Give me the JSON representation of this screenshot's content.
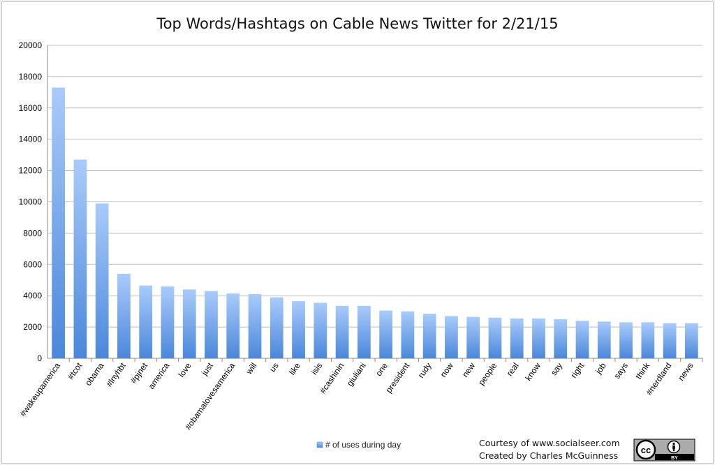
{
  "chart_data": {
    "type": "bar",
    "title": "Top Words/Hashtags on Cable News Twitter for 2/21/15",
    "xlabel": "",
    "ylabel": "",
    "ylim": [
      0,
      20000
    ],
    "yticks": [
      "0",
      "2000",
      "4000",
      "6000",
      "8000",
      "10000",
      "12000",
      "14000",
      "16000",
      "18000",
      "20000"
    ],
    "grid": true,
    "legend_position": "bottom",
    "categories": [
      "#wakeupamerica",
      "#tcot",
      "obama",
      "#lnyhbt",
      "#pjnet",
      "america",
      "love",
      "just",
      "#obamalovesamerica",
      "will",
      "us",
      "like",
      "isis",
      "#cashinin",
      "giuliani",
      "one",
      "president",
      "rudy",
      "now",
      "new",
      "people",
      "real",
      "know",
      "say",
      "right",
      "job",
      "says",
      "think",
      "#nerdland",
      "news"
    ],
    "series": [
      {
        "name": "# of uses during day",
        "color": "#6f9fe0",
        "values": [
          17300,
          12700,
          9900,
          5400,
          4650,
          4600,
          4400,
          4300,
          4150,
          4100,
          3900,
          3650,
          3550,
          3350,
          3350,
          3050,
          3000,
          2850,
          2700,
          2650,
          2600,
          2550,
          2550,
          2500,
          2400,
          2350,
          2300,
          2300,
          2250,
          2250
        ]
      }
    ]
  },
  "credits": {
    "line1": "Courtesy of www.socialseer.com",
    "line2": "Created by Charles McGuinness"
  },
  "license_badge": {
    "cc_text": "cc",
    "by_text": "BY"
  }
}
